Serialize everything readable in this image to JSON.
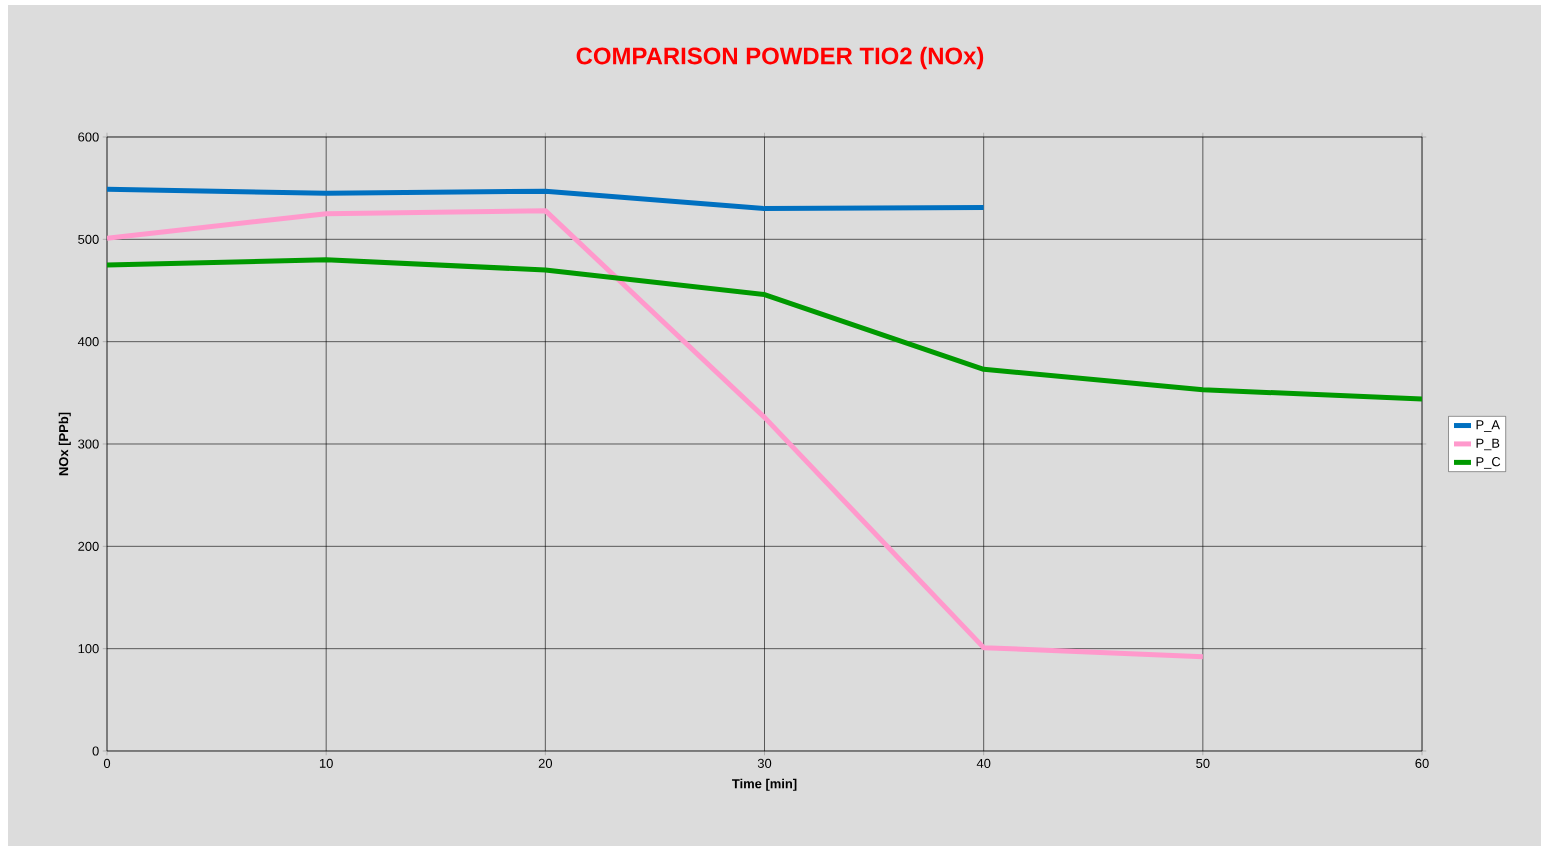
{
  "chart_data": {
    "type": "line",
    "title": "COMPARISON POWDER TIO2 (NOx)",
    "xlabel": "Time [min]",
    "ylabel": "NOx [PPb]",
    "x": [
      0,
      10,
      20,
      30,
      40,
      50,
      60
    ],
    "series": [
      {
        "name": "P_A",
        "color": "#0070c0",
        "values": [
          549,
          545,
          547,
          530,
          531,
          null,
          null
        ]
      },
      {
        "name": "P_B",
        "color": "#ff99cc",
        "values": [
          501,
          525,
          528,
          326,
          101,
          92,
          null
        ]
      },
      {
        "name": "P_C",
        "color": "#009900",
        "values": [
          475,
          480,
          470,
          446,
          373,
          353,
          344
        ]
      }
    ],
    "xlim": [
      0,
      60
    ],
    "ylim": [
      0,
      600
    ],
    "xticks": [
      0,
      10,
      20,
      30,
      40,
      50,
      60
    ],
    "yticks": [
      0,
      100,
      200,
      300,
      400,
      500,
      600
    ],
    "grid": true,
    "legend": "right",
    "marker": "none",
    "line_style": "solid"
  }
}
